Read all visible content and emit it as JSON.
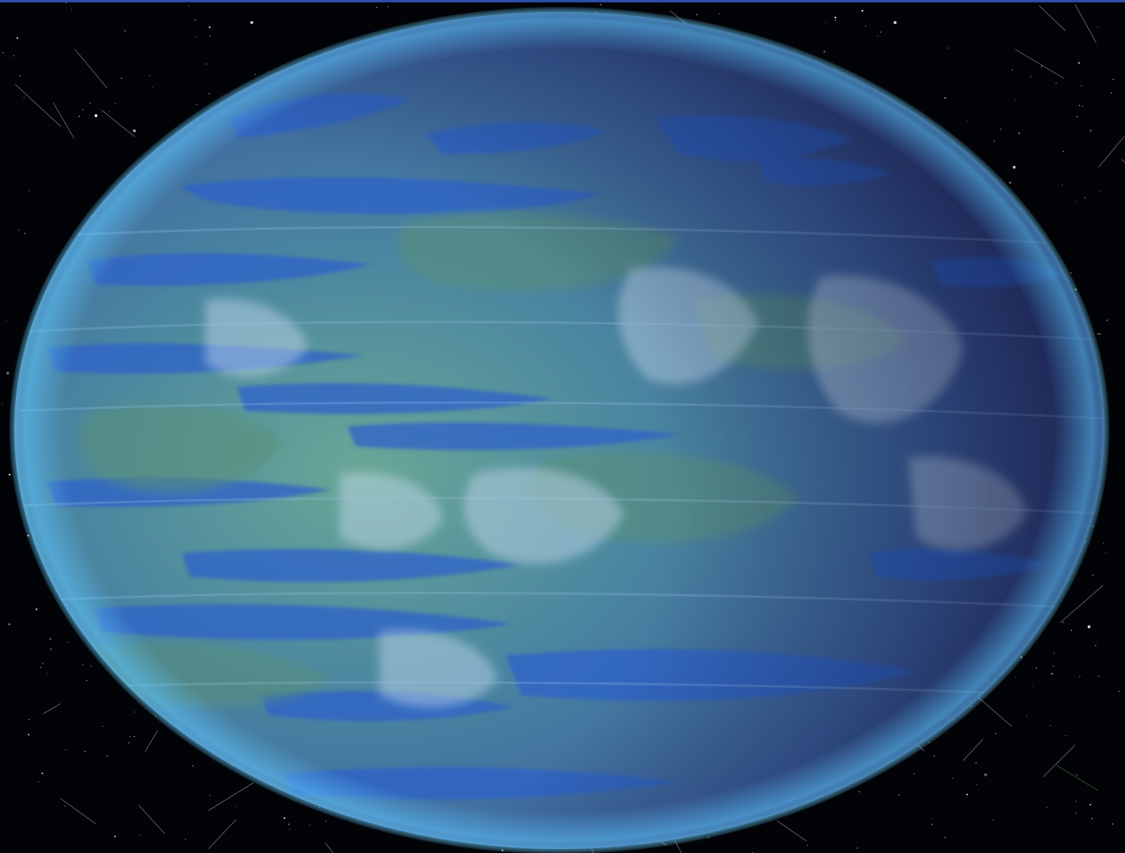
{
  "image": {
    "subject": "planet-in-space",
    "colors": {
      "space": "#020306",
      "ocean": "#2f62c9",
      "land": "#4f8a7a",
      "cloud": "#c8dcf0",
      "limb_glow": "#5ec8ff",
      "night_side": "#2a2f6a",
      "top_strip": "#2b4fa8"
    }
  }
}
